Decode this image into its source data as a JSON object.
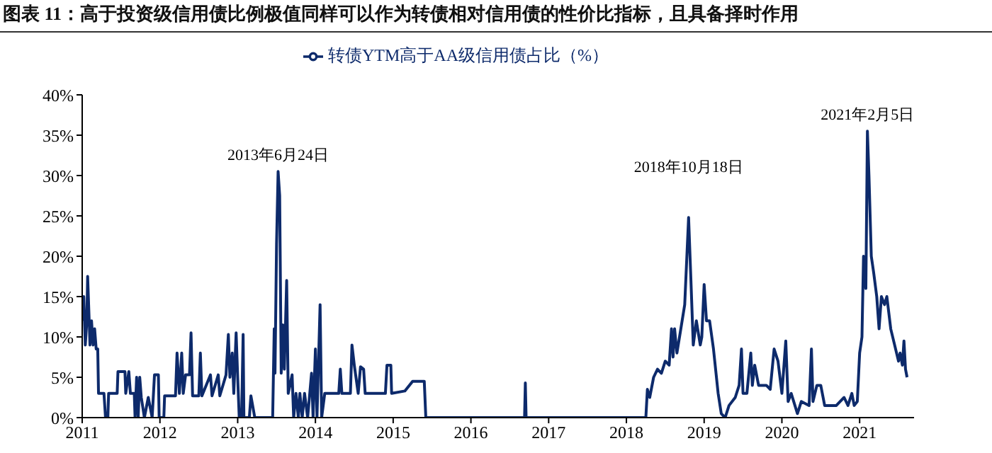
{
  "chart_data": {
    "type": "line",
    "title": "图表 11：高于投资级信用债比例极值同样可以作为转债相对信用债的性价比指标，且具备择时作用",
    "series": [
      {
        "name": "转债YTM高于AA级信用债占比（%）",
        "color": "#0d2a6b",
        "x": [
          2011.0,
          2011.02,
          2011.04,
          2011.06,
          2011.07,
          2011.09,
          2011.1,
          2011.12,
          2011.14,
          2011.16,
          2011.18,
          2011.2,
          2011.21,
          2011.28,
          2011.3,
          2011.33,
          2011.34,
          2011.45,
          2011.46,
          2011.55,
          2011.56,
          2011.6,
          2011.62,
          2011.67,
          2011.68,
          2011.7,
          2011.72,
          2011.74,
          2011.76,
          2011.8,
          2011.85,
          2011.9,
          2011.93,
          2011.98,
          2011.99,
          2012.05,
          2012.06,
          2012.2,
          2012.22,
          2012.25,
          2012.28,
          2012.3,
          2012.33,
          2012.38,
          2012.4,
          2012.42,
          2012.5,
          2012.52,
          2012.54,
          2012.65,
          2012.67,
          2012.75,
          2012.77,
          2012.85,
          2012.88,
          2012.9,
          2012.93,
          2012.95,
          2012.98,
          2013.0,
          2013.02,
          2013.05,
          2013.07,
          2013.08,
          2013.15,
          2013.17,
          2013.22,
          2013.45,
          2013.47,
          2013.48,
          2013.5,
          2013.52,
          2013.54,
          2013.56,
          2013.58,
          2013.6,
          2013.63,
          2013.65,
          2013.7,
          2013.72,
          2013.75,
          2013.78,
          2013.8,
          2013.83,
          2013.86,
          2013.9,
          2013.95,
          2013.97,
          2014.0,
          2014.02,
          2014.06,
          2014.08,
          2014.12,
          2014.3,
          2014.32,
          2014.34,
          2014.45,
          2014.47,
          2014.5,
          2014.55,
          2014.58,
          2014.62,
          2014.64,
          2014.9,
          2014.92,
          2014.97,
          2014.98,
          2015.15,
          2015.25,
          2015.4,
          2015.42,
          2016.69,
          2016.7,
          2016.71,
          2018.25,
          2018.27,
          2018.3,
          2018.35,
          2018.4,
          2018.45,
          2018.5,
          2018.55,
          2018.58,
          2018.6,
          2018.62,
          2018.65,
          2018.7,
          2018.75,
          2018.8,
          2018.83,
          2018.86,
          2018.9,
          2018.95,
          2018.97,
          2019.0,
          2019.03,
          2019.07,
          2019.12,
          2019.18,
          2019.22,
          2019.27,
          2019.32,
          2019.4,
          2019.45,
          2019.48,
          2019.5,
          2019.55,
          2019.6,
          2019.62,
          2019.65,
          2019.7,
          2019.8,
          2019.85,
          2019.9,
          2019.95,
          2020.0,
          2020.05,
          2020.08,
          2020.12,
          2020.2,
          2020.25,
          2020.35,
          2020.38,
          2020.4,
          2020.45,
          2020.5,
          2020.55,
          2020.7,
          2020.75,
          2020.8,
          2020.85,
          2020.9,
          2020.93,
          2020.97,
          2021.0,
          2021.03,
          2021.05,
          2021.08,
          2021.1,
          2021.12,
          2021.15,
          2021.18,
          2021.22,
          2021.25,
          2021.28,
          2021.32,
          2021.35,
          2021.4,
          2021.45,
          2021.5,
          2021.52,
          2021.55,
          2021.57,
          2021.59,
          2021.61
        ],
        "values": [
          12,
          15,
          9,
          12,
          17.5,
          12,
          9,
          12,
          9,
          11,
          8.5,
          8.5,
          3,
          3,
          0,
          0,
          3,
          3,
          5.7,
          5.7,
          3,
          5.7,
          3,
          3,
          0,
          5,
          0,
          5,
          2.5,
          0,
          2.5,
          0,
          5.3,
          5.3,
          0,
          0,
          2.7,
          2.7,
          8,
          3,
          8,
          3,
          5.3,
          5.3,
          10.5,
          2.7,
          2.7,
          8,
          2.7,
          5.3,
          2.7,
          5.3,
          2.7,
          5.3,
          10.3,
          5,
          8,
          3,
          10.5,
          5,
          0,
          0,
          10.3,
          0,
          0,
          2.7,
          0,
          0,
          11,
          5.5,
          21.5,
          30.5,
          27.5,
          5.5,
          11.5,
          6,
          17,
          3,
          5.3,
          0,
          3,
          0,
          3,
          0,
          3,
          0,
          5.5,
          0,
          8.5,
          0,
          14,
          0,
          3,
          3,
          6,
          3,
          3,
          9,
          6.5,
          3,
          6.3,
          6,
          3,
          3,
          6.5,
          6.5,
          3,
          3.3,
          4.5,
          4.5,
          0,
          0,
          4.3,
          0,
          0,
          3.5,
          2.5,
          5,
          6,
          5.5,
          7,
          6.5,
          11,
          7.5,
          11,
          8,
          11,
          14,
          24.8,
          17,
          9,
          12,
          9,
          10,
          16.5,
          12,
          12,
          8.5,
          3,
          0.5,
          0,
          1.5,
          2.5,
          4,
          8.5,
          3,
          3,
          8,
          4,
          6.5,
          4,
          4,
          3.5,
          8.5,
          7,
          3,
          9.5,
          2,
          3,
          0.5,
          2,
          1.5,
          8.5,
          2,
          4,
          4,
          1.5,
          1.5,
          2,
          2.5,
          1.5,
          3,
          1.5,
          2,
          8,
          10,
          20,
          16,
          35.5,
          30,
          20,
          18,
          15,
          11,
          15,
          14,
          15,
          11,
          9,
          7,
          8,
          6.5,
          9.5,
          6,
          5
        ]
      }
    ],
    "xlim": [
      2011,
      2021.7
    ],
    "xticks": [
      2011,
      2012,
      2013,
      2014,
      2015,
      2016,
      2017,
      2018,
      2019,
      2020,
      2021
    ],
    "ylim": [
      0,
      40
    ],
    "yticks": [
      {
        "value": 0,
        "label": "0%"
      },
      {
        "value": 5,
        "label": "5%"
      },
      {
        "value": 10,
        "label": "10%"
      },
      {
        "value": 15,
        "label": "15%"
      },
      {
        "value": 20,
        "label": "20%"
      },
      {
        "value": 25,
        "label": "25%"
      },
      {
        "value": 30,
        "label": "30%"
      },
      {
        "value": 35,
        "label": "35%"
      },
      {
        "value": 40,
        "label": "40%"
      }
    ],
    "annotations": [
      {
        "text": "2013年6月24日",
        "x": 2013.52,
        "y": 30.5
      },
      {
        "text": "2018年10月18日",
        "x": 2018.8,
        "y": 24.8
      },
      {
        "text": "2021年2月5日",
        "x": 2021.1,
        "y": 35.5
      }
    ],
    "grid": false,
    "legend": "top",
    "marker": "none",
    "line_style": "solid"
  }
}
